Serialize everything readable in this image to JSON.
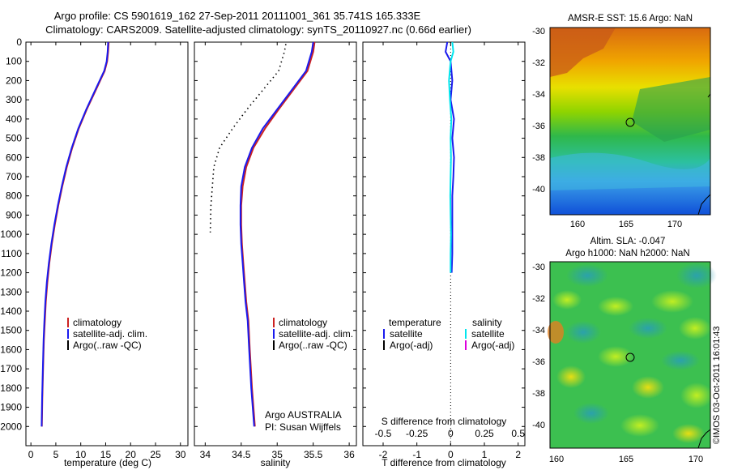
{
  "header": {
    "line1": "Argo profile: CS 5901619_162 27-Sep-2011 20111001_361 35.741S 165.333E",
    "line2": "Climatology: CARS2009. Satellite-adjusted climatology: synTS_20110927.nc (0.66d earlier)"
  },
  "colors": {
    "climatology": "#cc2222",
    "satellite": "#1a1aee",
    "argo": "#000000",
    "satellite_sal": "#00e5ee",
    "argo_adj_sal": "#dd00dd"
  },
  "chart_data": [
    {
      "id": "temperature",
      "type": "line",
      "xlabel": "temperature (deg C)",
      "ylabel": "",
      "xlim": [
        -1,
        31.5
      ],
      "ylim": [
        2100,
        0
      ],
      "xticks": [
        0,
        5,
        10,
        15,
        20,
        25,
        30
      ],
      "yticks": [
        0,
        100,
        200,
        300,
        400,
        500,
        600,
        700,
        800,
        900,
        1000,
        1100,
        1200,
        1300,
        1400,
        1500,
        1600,
        1700,
        1800,
        1900,
        2000
      ],
      "legend": {
        "placement": "center-right",
        "entries": [
          "climatology",
          "satellite-adj. clim.",
          "Argo(..raw -QC)"
        ]
      },
      "series": [
        {
          "name": "climatology",
          "color": "#cc2222",
          "x": [
            15.6,
            15.5,
            15.3,
            14.8,
            13.0,
            11.2,
            9.6,
            8.3,
            7.2,
            6.3,
            5.5,
            4.8,
            4.2,
            3.7,
            3.3,
            3.0,
            2.8,
            2.6,
            2.5,
            2.4,
            2.3,
            2.2
          ],
          "y": [
            0,
            50,
            100,
            150,
            250,
            350,
            450,
            550,
            650,
            750,
            850,
            950,
            1050,
            1150,
            1250,
            1350,
            1450,
            1550,
            1650,
            1750,
            1850,
            2000
          ]
        },
        {
          "name": "satellite-adj. clim.",
          "color": "#1a1aee",
          "x": [
            15.5,
            15.4,
            15.2,
            14.7,
            12.9,
            11.1,
            9.5,
            8.2,
            7.1,
            6.2,
            5.4,
            4.7,
            4.1,
            3.6,
            3.2,
            2.9,
            2.7,
            2.55,
            2.45,
            2.35,
            2.25,
            2.15
          ],
          "y": [
            0,
            50,
            100,
            150,
            250,
            350,
            450,
            550,
            650,
            750,
            850,
            950,
            1050,
            1150,
            1250,
            1350,
            1450,
            1550,
            1650,
            1750,
            1850,
            2000
          ]
        }
      ]
    },
    {
      "id": "salinity",
      "type": "line",
      "xlabel": "salinity",
      "ylabel": "",
      "xlim": [
        33.85,
        36.1
      ],
      "ylim": [
        2100,
        0
      ],
      "xticks": [
        34,
        34.5,
        35,
        35.5,
        36
      ],
      "tick_labels": [
        "34",
        "34.5",
        "35",
        "35.5",
        "36"
      ],
      "legend": {
        "placement": "center-right",
        "entries": [
          "climatology",
          "satellite-adj. clim.",
          "Argo(..raw -QC)"
        ]
      },
      "annotation": [
        "Argo AUSTRALIA",
        "PI: Susan Wijffels"
      ],
      "series": [
        {
          "name": "climatology",
          "color": "#cc2222",
          "x": [
            35.52,
            35.5,
            35.42,
            35.22,
            35.02,
            34.83,
            34.67,
            34.57,
            34.52,
            34.5,
            34.5,
            34.51,
            34.53,
            34.55,
            34.57,
            34.6,
            34.62,
            34.65,
            34.67,
            34.69
          ],
          "y": [
            0,
            50,
            150,
            250,
            350,
            450,
            550,
            650,
            750,
            850,
            950,
            1050,
            1150,
            1250,
            1350,
            1450,
            1600,
            1800,
            1900,
            2000
          ]
        },
        {
          "name": "satellite-adj. clim.",
          "color": "#1a1aee",
          "x": [
            35.5,
            35.48,
            35.4,
            35.2,
            35.0,
            34.8,
            34.65,
            34.55,
            34.5,
            34.49,
            34.49,
            34.5,
            34.52,
            34.54,
            34.56,
            34.59,
            34.61,
            34.64,
            34.66,
            34.68
          ],
          "y": [
            0,
            50,
            150,
            250,
            350,
            450,
            550,
            650,
            750,
            850,
            950,
            1050,
            1150,
            1250,
            1350,
            1450,
            1600,
            1800,
            1900,
            2000
          ]
        },
        {
          "name": "Argo(..raw -QC)",
          "color": "#000000",
          "style": "dotted",
          "x": [
            35.12,
            35.1,
            35.02,
            34.8,
            34.58,
            34.38,
            34.2,
            34.12,
            34.1,
            34.08,
            34.07
          ],
          "y": [
            10,
            50,
            150,
            250,
            350,
            450,
            550,
            650,
            750,
            850,
            990
          ]
        }
      ]
    },
    {
      "id": "difference",
      "type": "line",
      "xlabel": "T difference from climatology",
      "xlabel_top": "S difference from climatology",
      "xlim": [
        -2.6,
        2.2
      ],
      "ylim": [
        2100,
        0
      ],
      "xticks": [
        -2,
        -1,
        0,
        1,
        2
      ],
      "sticks": [
        -0.5,
        -0.25,
        0,
        0.25,
        0.5
      ],
      "stick_labels": [
        "-0.5",
        "-0.25",
        "0",
        "0.25",
        "0.5"
      ],
      "legend": {
        "placement": "center",
        "groups": [
          "temperature",
          "salinity"
        ],
        "entries": [
          "satellite",
          "Argo(-adj)",
          "satellite",
          "Argo(-adj)"
        ]
      },
      "series": [
        {
          "name": "temperature satellite",
          "color": "#1a1aee",
          "x": [
            -0.1,
            -0.15,
            0.0,
            0.05,
            0.0,
            0.1,
            0.05,
            0.1,
            0.08,
            0.05,
            0.05,
            0.05,
            0.05,
            0.03
          ],
          "y": [
            0,
            50,
            100,
            200,
            300,
            400,
            500,
            600,
            700,
            800,
            900,
            1000,
            1100,
            1200
          ]
        },
        {
          "name": "salinity satellite",
          "color": "#00e5ee",
          "x": [
            0.05,
            0.08,
            0.0,
            -0.05,
            -0.02,
            0.02,
            0.0,
            0.01,
            0.0,
            -0.01,
            0.0,
            0.01,
            0.0,
            0.0
          ],
          "y": [
            0,
            50,
            100,
            200,
            300,
            400,
            500,
            600,
            700,
            800,
            900,
            1000,
            1100,
            1200
          ]
        }
      ]
    }
  ],
  "maps": {
    "top": {
      "title": "AMSR-E SST: 15.6 Argo: NaN",
      "xticks": [
        "160",
        "165",
        "170"
      ],
      "yticks": [
        "-30",
        "-32",
        "-34",
        "-36",
        "-38",
        "-40"
      ]
    },
    "bottom": {
      "title1": "Altim. SLA: -0.047",
      "title2": "Argo h1000: NaN h2000: NaN",
      "xticks": [
        "160",
        "165",
        "170"
      ],
      "yticks": [
        "-30",
        "-32",
        "-34",
        "-36",
        "-38",
        "-40"
      ]
    }
  },
  "stamp": "©IMOS 03-Oct-2011 16:01:43"
}
